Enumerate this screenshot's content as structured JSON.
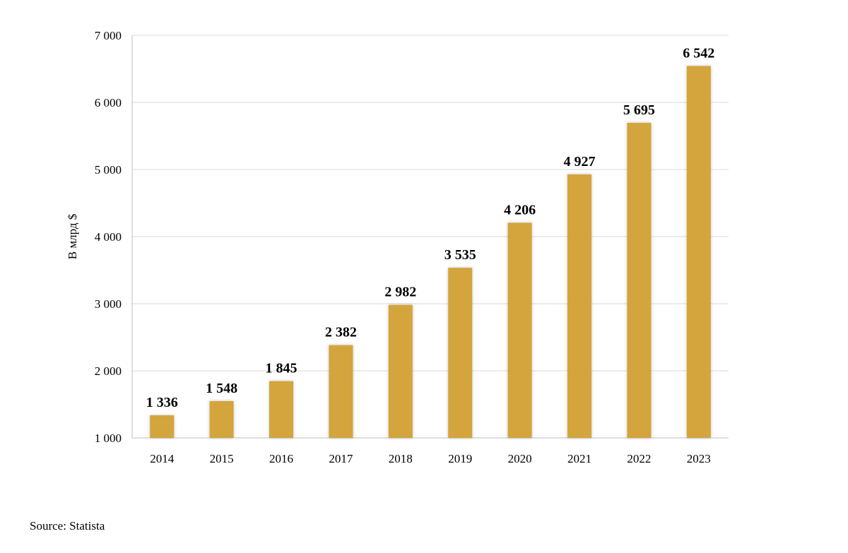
{
  "chart_data": {
    "type": "bar",
    "title": "",
    "xlabel": "",
    "ylabel": "В млрд $",
    "categories": [
      "2014",
      "2015",
      "2016",
      "2017",
      "2018",
      "2019",
      "2020",
      "2021",
      "2022",
      "2023"
    ],
    "values": [
      1336,
      1548,
      1845,
      2382,
      2982,
      3535,
      4206,
      4927,
      5695,
      6542
    ],
    "data_labels": [
      "1 336",
      "1 548",
      "1 845",
      "2 382",
      "2 982",
      "3 535",
      "4 206",
      "4 927",
      "5 695",
      "6 542"
    ],
    "ylim": [
      1000,
      7000
    ],
    "yticks": [
      1000,
      2000,
      3000,
      4000,
      5000,
      6000,
      7000
    ],
    "ytick_labels": [
      "1 000",
      "2 000",
      "3 000",
      "4 000",
      "5 000",
      "6 000",
      "7 000"
    ],
    "grid": true,
    "legend": "none",
    "bar_color": "#d4a43c"
  },
  "source": "Source: Statista"
}
